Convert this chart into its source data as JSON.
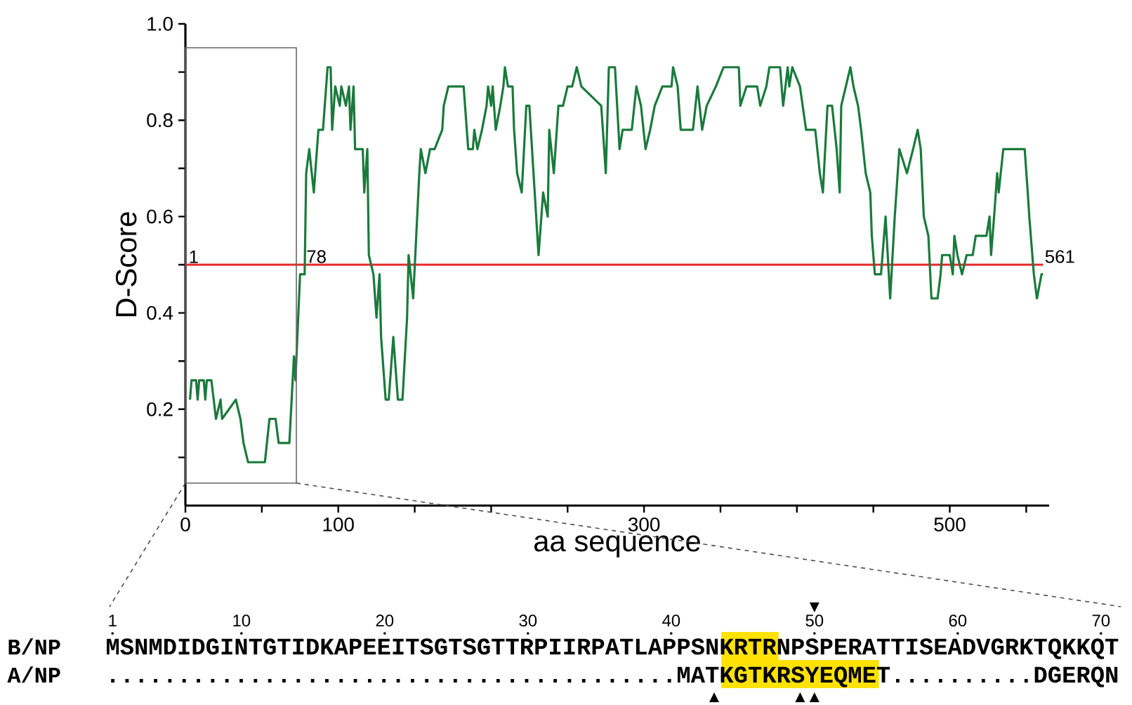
{
  "chart_data": {
    "type": "line",
    "xlabel": "aa sequence",
    "ylabel": "D-Score",
    "x": [
      3,
      4,
      7,
      8,
      9,
      12,
      13,
      14,
      17,
      20,
      23,
      24,
      33,
      36,
      38,
      41,
      52,
      55,
      59,
      61,
      68,
      71,
      72,
      75,
      78,
      79,
      81,
      84,
      87,
      90,
      93,
      95,
      96,
      98,
      101,
      102,
      105,
      107,
      108,
      110,
      111,
      116,
      117,
      119,
      120,
      123,
      125,
      127,
      128,
      131,
      133,
      136,
      139,
      142,
      145,
      146,
      149,
      151,
      153,
      154,
      157,
      160,
      163,
      168,
      169,
      172,
      182,
      185,
      188,
      189,
      191,
      194,
      197,
      198,
      200,
      201,
      203,
      206,
      208,
      209,
      211,
      214,
      215,
      217,
      220,
      223,
      225,
      231,
      234,
      237,
      238,
      241,
      244,
      247,
      250,
      253,
      256,
      259,
      272,
      275,
      277,
      281,
      284,
      286,
      292,
      295,
      298,
      301,
      304,
      307,
      312,
      318,
      319,
      322,
      324,
      332,
      335,
      338,
      341,
      347,
      352,
      362,
      363,
      367,
      374,
      376,
      380,
      382,
      389,
      391,
      394,
      395,
      397,
      402,
      406,
      412,
      415,
      417,
      420,
      423,
      426,
      428,
      429,
      432,
      435,
      437,
      440,
      442,
      445,
      448,
      449,
      451,
      455,
      458,
      461,
      464,
      467,
      472,
      476,
      479,
      481,
      483,
      486,
      488,
      492,
      494,
      495,
      500,
      502,
      503,
      505,
      508,
      511,
      515,
      517,
      524,
      526,
      527,
      529,
      531,
      532,
      535,
      549,
      551,
      552,
      555,
      557,
      560,
      561
    ],
    "values": [
      0.22,
      0.26,
      0.26,
      0.22,
      0.26,
      0.26,
      0.22,
      0.26,
      0.26,
      0.18,
      0.22,
      0.18,
      0.22,
      0.18,
      0.13,
      0.09,
      0.09,
      0.18,
      0.18,
      0.13,
      0.13,
      0.31,
      0.26,
      0.48,
      0.48,
      0.69,
      0.74,
      0.65,
      0.78,
      0.78,
      0.91,
      0.91,
      0.78,
      0.87,
      0.83,
      0.87,
      0.83,
      0.87,
      0.78,
      0.87,
      0.74,
      0.74,
      0.65,
      0.74,
      0.52,
      0.48,
      0.39,
      0.48,
      0.35,
      0.22,
      0.22,
      0.35,
      0.22,
      0.22,
      0.39,
      0.52,
      0.43,
      0.56,
      0.69,
      0.74,
      0.69,
      0.74,
      0.74,
      0.78,
      0.83,
      0.87,
      0.87,
      0.74,
      0.74,
      0.78,
      0.74,
      0.78,
      0.83,
      0.87,
      0.83,
      0.87,
      0.78,
      0.83,
      0.87,
      0.91,
      0.87,
      0.87,
      0.78,
      0.69,
      0.65,
      0.83,
      0.83,
      0.52,
      0.65,
      0.6,
      0.78,
      0.69,
      0.83,
      0.83,
      0.87,
      0.87,
      0.91,
      0.87,
      0.83,
      0.69,
      0.91,
      0.91,
      0.74,
      0.78,
      0.78,
      0.87,
      0.83,
      0.74,
      0.78,
      0.83,
      0.87,
      0.87,
      0.91,
      0.87,
      0.78,
      0.78,
      0.87,
      0.78,
      0.83,
      0.87,
      0.91,
      0.91,
      0.83,
      0.87,
      0.87,
      0.83,
      0.87,
      0.91,
      0.91,
      0.83,
      0.91,
      0.87,
      0.91,
      0.87,
      0.78,
      0.78,
      0.69,
      0.65,
      0.83,
      0.83,
      0.74,
      0.65,
      0.83,
      0.87,
      0.91,
      0.87,
      0.83,
      0.78,
      0.69,
      0.65,
      0.56,
      0.48,
      0.48,
      0.6,
      0.43,
      0.6,
      0.74,
      0.69,
      0.74,
      0.78,
      0.74,
      0.6,
      0.56,
      0.43,
      0.43,
      0.48,
      0.52,
      0.52,
      0.48,
      0.56,
      0.52,
      0.48,
      0.52,
      0.52,
      0.56,
      0.56,
      0.6,
      0.52,
      0.6,
      0.69,
      0.65,
      0.74,
      0.74,
      0.65,
      0.6,
      0.48,
      0.43,
      0.48,
      0.48
    ],
    "color": "#1a7a3c",
    "marker": "none",
    "line_style": "solid",
    "xlim": [
      0,
      565
    ],
    "ylim": [
      0,
      1
    ],
    "xticks": [
      0,
      {
        "value": 50,
        "label": null
      },
      100,
      {
        "value": 150,
        "label": null
      },
      {
        "value": 200,
        "label": null
      },
      {
        "value": 250,
        "label": null
      },
      300,
      {
        "value": 350,
        "label": null
      },
      {
        "value": 400,
        "label": null
      },
      {
        "value": 450,
        "label": null
      },
      500,
      {
        "value": 550,
        "label": null
      }
    ],
    "yticks": [
      {
        "value": 0.1,
        "label": null
      },
      0.2,
      {
        "value": 0.3,
        "label": null
      },
      0.4,
      {
        "value": 0.5,
        "label": null
      },
      0.6,
      {
        "value": 0.7,
        "label": null
      },
      0.8,
      {
        "value": 0.9,
        "label": null
      },
      {
        "value": 1,
        "label": "1.0"
      }
    ],
    "ref_lines": [
      {
        "axis": "y",
        "value": 0.5,
        "color": "#e8262a"
      }
    ],
    "annotations": [
      {
        "text": "1",
        "x": 1,
        "y": 0.5
      },
      {
        "text": "78",
        "x": 78,
        "y": 0.5
      },
      {
        "text": "561",
        "x": 561,
        "y": 0.5
      },
      "1",
      "10",
      "20",
      "30",
      "40",
      "50",
      "60",
      "70",
      "B/NP",
      "MSNMDIDGINTGTIDKAPEEITSGTSGTTRPIIRPATLAPPSNKRTRNPSPERATTISEADVGRKTQKKQT",
      "A/NP",
      "........................................MATKGTKRSYEQMET..........DGERQN"
    ]
  }
}
